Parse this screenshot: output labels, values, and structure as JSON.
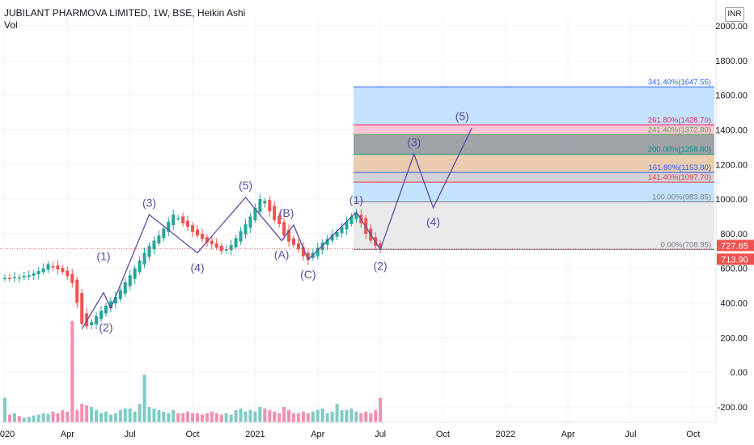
{
  "header": {
    "title": "JUBILANT PHARMOVA LIMITED, 1W, BSE, Heikin Ashi",
    "volume_label": "Vol",
    "currency": "INR"
  },
  "colors": {
    "up": "#26a69a",
    "down": "#ef5350",
    "vol_up": "#80cbc4",
    "vol_down": "#f48fb1",
    "wave": "#5b4aa3",
    "price_tag_last": "#ef5350",
    "price_tag_close": "#ef5350"
  },
  "price_tags": {
    "upper": "727.65",
    "lower": "713.90"
  },
  "chart_data": {
    "type": "candlestick",
    "y_ticks": [
      "2000.00",
      "1800.00",
      "1600.00",
      "1400.00",
      "1200.00",
      "1000.00",
      "800.00",
      "600.00",
      "400.00",
      "200.00",
      "0.00",
      "-200.00"
    ],
    "ylim": [
      -240,
      2100
    ],
    "x_ticks": [
      {
        "label": "2020",
        "x": 0
      },
      {
        "label": "Apr",
        "x": 13
      },
      {
        "label": "Jul",
        "x": 26
      },
      {
        "label": "Oct",
        "x": 39
      },
      {
        "label": "2021",
        "x": 52
      },
      {
        "label": "Apr",
        "x": 65
      },
      {
        "label": "Jul",
        "x": 78
      },
      {
        "label": "Oct",
        "x": 91
      },
      {
        "label": "2022",
        "x": 104
      },
      {
        "label": "Apr",
        "x": 117
      },
      {
        "label": "Jul",
        "x": 130
      },
      {
        "label": "Oct",
        "x": 143
      }
    ],
    "closes": [
      545,
      543,
      550,
      548,
      556,
      560,
      572,
      585,
      600,
      625,
      610,
      595,
      580,
      555,
      515,
      400,
      280,
      265,
      290,
      325,
      355,
      385,
      410,
      435,
      475,
      520,
      560,
      600,
      645,
      690,
      730,
      760,
      790,
      830,
      870,
      910,
      890,
      860,
      840,
      810,
      790,
      770,
      750,
      740,
      720,
      700,
      710,
      735,
      775,
      815,
      855,
      900,
      950,
      1000,
      990,
      930,
      880,
      855,
      790,
      755,
      735,
      710,
      670,
      650,
      690,
      720,
      750,
      770,
      795,
      810,
      840,
      870,
      900,
      920,
      860,
      800,
      760,
      730,
      714
    ],
    "volumes": [
      80,
      25,
      30,
      20,
      15,
      18,
      22,
      25,
      30,
      28,
      35,
      30,
      40,
      35,
      330,
      40,
      60,
      55,
      50,
      40,
      30,
      35,
      25,
      30,
      40,
      45,
      45,
      35,
      60,
      155,
      50,
      45,
      40,
      35,
      30,
      40,
      30,
      30,
      35,
      30,
      30,
      25,
      30,
      35,
      30,
      25,
      30,
      25,
      40,
      45,
      35,
      40,
      35,
      50,
      45,
      40,
      35,
      30,
      50,
      40,
      30,
      30,
      35,
      30,
      35,
      40,
      45,
      30,
      35,
      60,
      40,
      40,
      45,
      35,
      30,
      35,
      30,
      40,
      80
    ],
    "fibonacci": [
      {
        "label": "341.40%(1647.55)",
        "value": 1647.55,
        "color": "#2962ff"
      },
      {
        "label": "261.80%(1428.70)",
        "value": 1428.7,
        "color": "#e91e63"
      },
      {
        "label": "241.40%(1372.80)",
        "value": 1372.8,
        "color": "#4caf50"
      },
      {
        "label": "200.00%(1258.80)",
        "value": 1258.8,
        "color": "#009688"
      },
      {
        "label": "161.80%(1153.80)",
        "value": 1153.8,
        "color": "#2962ff"
      },
      {
        "label": "141.40%(1097.70)",
        "value": 1097.7,
        "color": "#f23645"
      },
      {
        "label": "100.00%(983.85)",
        "value": 983.85,
        "color": "#787b86"
      },
      {
        "label": "0.00%(708.95)",
        "value": 708.95,
        "color": "#787b86"
      }
    ],
    "fib_zones": [
      {
        "from": 1428.7,
        "to": 1647.55,
        "color": "#bbdefb"
      },
      {
        "from": 1372.8,
        "to": 1428.7,
        "color": "#f8bbd0"
      },
      {
        "from": 1258.8,
        "to": 1372.8,
        "color": "#8d9399"
      },
      {
        "from": 1153.8,
        "to": 1258.8,
        "color": "#e6c3a0"
      },
      {
        "from": 1097.7,
        "to": 1153.8,
        "color": "#c9c9cf"
      },
      {
        "from": 983.85,
        "to": 1097.7,
        "color": "#bbdefb"
      },
      {
        "from": 708.95,
        "to": 983.85,
        "color": "#e6e6e9"
      }
    ],
    "waves": [
      {
        "label": "(1)",
        "x": 20.5,
        "y": 600,
        "pos": "above"
      },
      {
        "label": "(2)",
        "x": 21,
        "y": 340,
        "pos": "below"
      },
      {
        "label": "(3)",
        "x": 30,
        "y": 910,
        "pos": "above"
      },
      {
        "label": "(4)",
        "x": 40,
        "y": 685,
        "pos": "below"
      },
      {
        "label": "(5)",
        "x": 50,
        "y": 1010,
        "pos": "above"
      },
      {
        "label": "(A)",
        "x": 57.5,
        "y": 760,
        "pos": "below"
      },
      {
        "label": "(B)",
        "x": 58.5,
        "y": 850,
        "pos": "above"
      },
      {
        "label": "(C)",
        "x": 63,
        "y": 645,
        "pos": "below"
      },
      {
        "label": "(1)",
        "x": 73,
        "y": 925,
        "pos": "above"
      },
      {
        "label": "(2)",
        "x": 78,
        "y": 695,
        "pos": "below"
      },
      {
        "label": "(3)",
        "x": 85,
        "y": 1260,
        "pos": "above"
      },
      {
        "label": "(4)",
        "x": 89,
        "y": 950,
        "pos": "below"
      },
      {
        "label": "(5)",
        "x": 95,
        "y": 1410,
        "pos": "above"
      }
    ]
  }
}
